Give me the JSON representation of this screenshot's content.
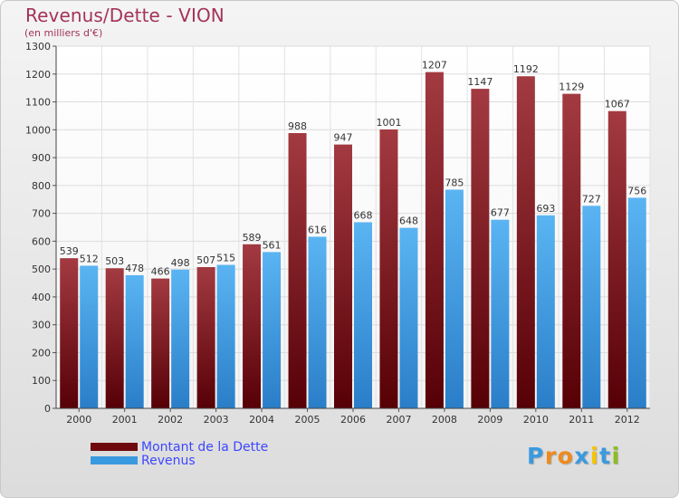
{
  "chart_data": {
    "type": "bar",
    "title": "Revenus/Dette - VION",
    "subtitle": "(en milliers d'€)",
    "categories": [
      "2000",
      "2001",
      "2002",
      "2003",
      "2004",
      "2005",
      "2006",
      "2007",
      "2008",
      "2009",
      "2010",
      "2011",
      "2012"
    ],
    "series": [
      {
        "name": "Montant de la Dette",
        "color": "#6e0a0f",
        "values": [
          539,
          503,
          466,
          507,
          589,
          988,
          947,
          1001,
          1207,
          1147,
          1192,
          1129,
          1067
        ]
      },
      {
        "name": "Revenus",
        "color": "#3a9ae0",
        "values": [
          512,
          478,
          498,
          515,
          561,
          616,
          668,
          648,
          785,
          677,
          693,
          727,
          756
        ]
      }
    ],
    "ylim": [
      0,
      1300
    ],
    "yticks": [
      0,
      100,
      200,
      300,
      400,
      500,
      600,
      700,
      800,
      900,
      1000,
      1100,
      1200,
      1300
    ],
    "grid": true,
    "legend_position": "bottom-left"
  },
  "branding": {
    "logo_letters": [
      "P",
      "r",
      "o",
      "x",
      "i",
      "t",
      "i"
    ],
    "logo_colors": [
      "#3a9ae0",
      "#f08a1c",
      "#f08a1c",
      "#3a9ae0",
      "#f5c400",
      "#3a9ae0",
      "#8bbf1e"
    ]
  }
}
